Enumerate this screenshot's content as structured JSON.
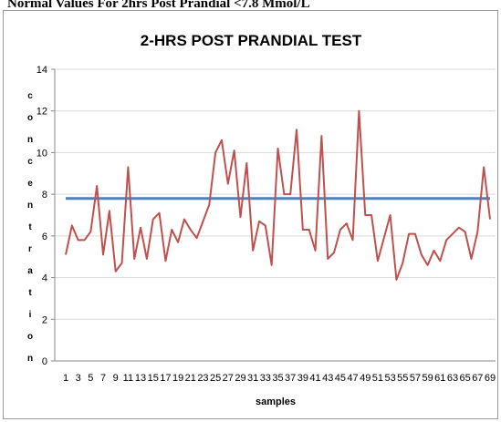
{
  "header": "Normal Values For 2hrs Post Prandial <7.8 Mmol/L",
  "chart_data": {
    "type": "line",
    "title": "2-HRS POST PRANDIAL TEST",
    "xlabel": "samples",
    "ylabel": "concentration",
    "categories": [
      "1",
      null,
      "3",
      null,
      "5",
      null,
      "7",
      null,
      "9",
      null,
      "11",
      null,
      "13",
      null,
      "15",
      null,
      "17",
      null,
      "19",
      null,
      "21",
      null,
      "23",
      null,
      "25",
      null,
      "27",
      null,
      "29",
      null,
      "31",
      null,
      "33",
      null,
      "35",
      null,
      "37",
      null,
      "39",
      null,
      "41",
      null,
      "43",
      null,
      "45",
      null,
      "47",
      null,
      "49",
      null,
      "51",
      null,
      "53",
      null,
      "55",
      null,
      "57",
      null,
      "59",
      null,
      "61",
      null,
      "63",
      null,
      "65",
      null,
      "67",
      null,
      "69"
    ],
    "series": [
      {
        "color": "#c0504d",
        "values": [
          5.1,
          6.5,
          5.8,
          5.8,
          6.2,
          8.4,
          5.1,
          7.2,
          4.3,
          4.7,
          9.3,
          4.9,
          6.4,
          4.9,
          6.8,
          7.1,
          4.8,
          6.3,
          5.7,
          6.8,
          6.3,
          5.9,
          6.7,
          7.5,
          10.0,
          10.6,
          8.5,
          10.1,
          6.9,
          9.5,
          5.3,
          6.7,
          6.5,
          4.6,
          10.2,
          8.0,
          8.0,
          11.1,
          6.3,
          6.3,
          5.3,
          10.8,
          4.9,
          5.2,
          6.3,
          6.6,
          5.8,
          12.0,
          7.0,
          7.0,
          4.8,
          5.9,
          7.0,
          3.9,
          4.7,
          6.1,
          6.1,
          5.1,
          4.6,
          5.3,
          4.8,
          5.8,
          6.1,
          6.4,
          6.2,
          4.9,
          6.2,
          9.3,
          6.8
        ]
      }
    ],
    "threshold": 7.8,
    "threshold_color": "#4f81bd",
    "ylim": [
      0,
      14
    ],
    "yticks": [
      0,
      2,
      4,
      6,
      8,
      10,
      12,
      14
    ],
    "grid": true
  }
}
